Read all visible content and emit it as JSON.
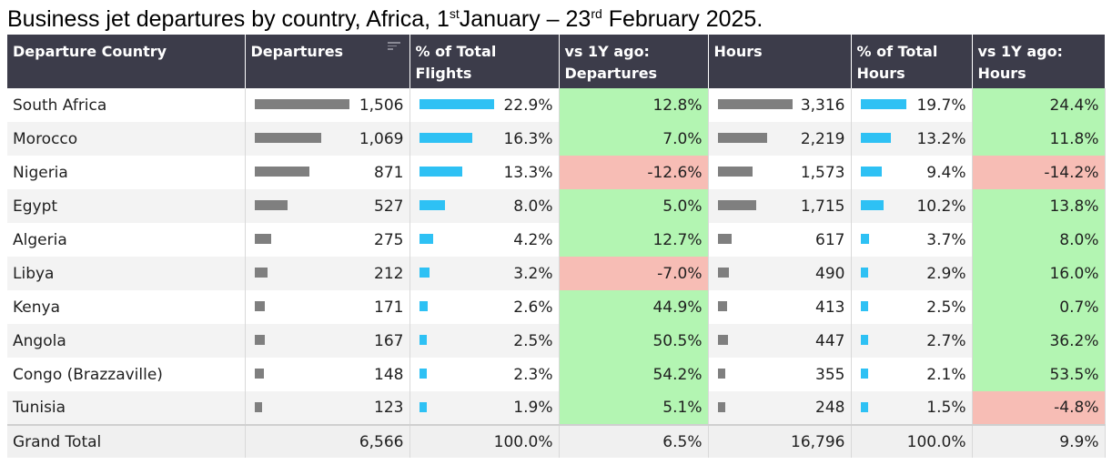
{
  "title": {
    "part1": "Business jet departures by country, Africa, 1",
    "sup1": "st",
    "part2": "January – 23",
    "sup2": "rd",
    "part3": " February 2025."
  },
  "columns": [
    "Departure Country",
    "Departures",
    "% of Total Flights",
    "vs 1Y ago: Departures",
    "Hours",
    "% of Total Hours",
    "vs 1Y ago: Hours"
  ],
  "chart_data": {
    "type": "table",
    "rows": [
      {
        "country": "South Africa",
        "departures": 1506,
        "departures_label": "1,506",
        "pct_flights": 22.9,
        "pct_flights_label": "22.9%",
        "vs1y_dep": 12.8,
        "vs1y_dep_label": "12.8%",
        "hours": 3316,
        "hours_label": "3,316",
        "pct_hours": 19.7,
        "pct_hours_label": "19.7%",
        "vs1y_hours": 24.4,
        "vs1y_hours_label": "24.4%"
      },
      {
        "country": "Morocco",
        "departures": 1069,
        "departures_label": "1,069",
        "pct_flights": 16.3,
        "pct_flights_label": "16.3%",
        "vs1y_dep": 7.0,
        "vs1y_dep_label": "7.0%",
        "hours": 2219,
        "hours_label": "2,219",
        "pct_hours": 13.2,
        "pct_hours_label": "13.2%",
        "vs1y_hours": 11.8,
        "vs1y_hours_label": "11.8%"
      },
      {
        "country": "Nigeria",
        "departures": 871,
        "departures_label": "871",
        "pct_flights": 13.3,
        "pct_flights_label": "13.3%",
        "vs1y_dep": -12.6,
        "vs1y_dep_label": "-12.6%",
        "hours": 1573,
        "hours_label": "1,573",
        "pct_hours": 9.4,
        "pct_hours_label": "9.4%",
        "vs1y_hours": -14.2,
        "vs1y_hours_label": "-14.2%"
      },
      {
        "country": "Egypt",
        "departures": 527,
        "departures_label": "527",
        "pct_flights": 8.0,
        "pct_flights_label": "8.0%",
        "vs1y_dep": 5.0,
        "vs1y_dep_label": "5.0%",
        "hours": 1715,
        "hours_label": "1,715",
        "pct_hours": 10.2,
        "pct_hours_label": "10.2%",
        "vs1y_hours": 13.8,
        "vs1y_hours_label": "13.8%"
      },
      {
        "country": "Algeria",
        "departures": 275,
        "departures_label": "275",
        "pct_flights": 4.2,
        "pct_flights_label": "4.2%",
        "vs1y_dep": 12.7,
        "vs1y_dep_label": "12.7%",
        "hours": 617,
        "hours_label": "617",
        "pct_hours": 3.7,
        "pct_hours_label": "3.7%",
        "vs1y_hours": 8.0,
        "vs1y_hours_label": "8.0%"
      },
      {
        "country": "Libya",
        "departures": 212,
        "departures_label": "212",
        "pct_flights": 3.2,
        "pct_flights_label": "3.2%",
        "vs1y_dep": -7.0,
        "vs1y_dep_label": "-7.0%",
        "hours": 490,
        "hours_label": "490",
        "pct_hours": 2.9,
        "pct_hours_label": "2.9%",
        "vs1y_hours": 16.0,
        "vs1y_hours_label": "16.0%"
      },
      {
        "country": "Kenya",
        "departures": 171,
        "departures_label": "171",
        "pct_flights": 2.6,
        "pct_flights_label": "2.6%",
        "vs1y_dep": 44.9,
        "vs1y_dep_label": "44.9%",
        "hours": 413,
        "hours_label": "413",
        "pct_hours": 2.5,
        "pct_hours_label": "2.5%",
        "vs1y_hours": 0.7,
        "vs1y_hours_label": "0.7%"
      },
      {
        "country": "Angola",
        "departures": 167,
        "departures_label": "167",
        "pct_flights": 2.5,
        "pct_flights_label": "2.5%",
        "vs1y_dep": 50.5,
        "vs1y_dep_label": "50.5%",
        "hours": 447,
        "hours_label": "447",
        "pct_hours": 2.7,
        "pct_hours_label": "2.7%",
        "vs1y_hours": 36.2,
        "vs1y_hours_label": "36.2%"
      },
      {
        "country": "Congo (Brazzaville)",
        "departures": 148,
        "departures_label": "148",
        "pct_flights": 2.3,
        "pct_flights_label": "2.3%",
        "vs1y_dep": 54.2,
        "vs1y_dep_label": "54.2%",
        "hours": 355,
        "hours_label": "355",
        "pct_hours": 2.1,
        "pct_hours_label": "2.1%",
        "vs1y_hours": 53.5,
        "vs1y_hours_label": "53.5%"
      },
      {
        "country": "Tunisia",
        "departures": 123,
        "departures_label": "123",
        "pct_flights": 1.9,
        "pct_flights_label": "1.9%",
        "vs1y_dep": 5.1,
        "vs1y_dep_label": "5.1%",
        "hours": 248,
        "hours_label": "248",
        "pct_hours": 1.5,
        "pct_hours_label": "1.5%",
        "vs1y_hours": -4.8,
        "vs1y_hours_label": "-4.8%"
      }
    ],
    "total": {
      "label": "Grand Total",
      "departures_label": "6,566",
      "pct_flights_label": "100.0%",
      "vs1y_dep_label": "6.5%",
      "hours_label": "16,796",
      "pct_hours_label": "100.0%",
      "vs1y_hours_label": "9.9%"
    }
  },
  "colors": {
    "header_bg": "#3c3c4a",
    "bar_gray": "#7f7f7f",
    "bar_blue": "#2ec1f4",
    "positive": "#b3f5b2",
    "negative": "#f7bdb5"
  },
  "icons": {
    "sort": "sort-descending-icon"
  }
}
